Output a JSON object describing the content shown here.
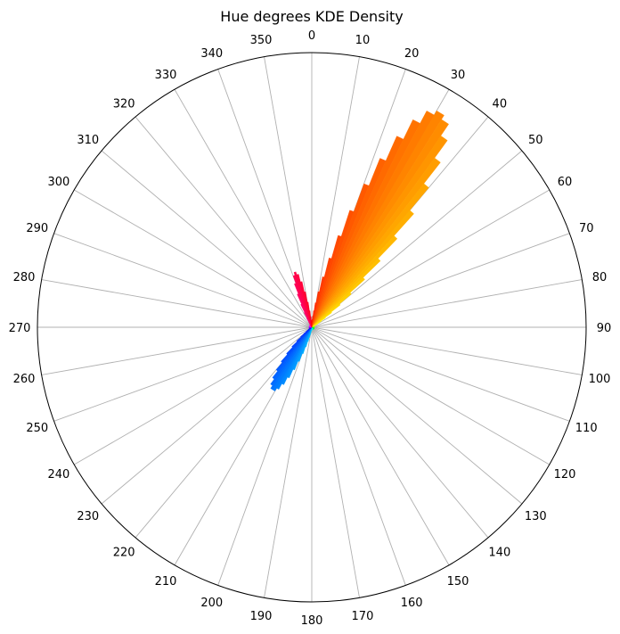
{
  "chart_data": {
    "type": "polar-bar",
    "title": "Hue degrees KDE Density",
    "theta_zero_location": "top",
    "theta_direction": "clockwise",
    "theta_ticks": [
      "0",
      "10",
      "20",
      "30",
      "40",
      "50",
      "60",
      "70",
      "80",
      "90",
      "100",
      "110",
      "120",
      "130",
      "140",
      "150",
      "160",
      "170",
      "180",
      "190",
      "200",
      "210",
      "220",
      "230",
      "240",
      "250",
      "260",
      "270",
      "280",
      "290",
      "300",
      "310",
      "320",
      "330",
      "340",
      "350"
    ],
    "r_ticks_shown": false,
    "r_max": 1.0,
    "grid": "radial spokes every 10 degrees",
    "bar_color_mapping": "hue of bin angle (hsv colormap)",
    "bin_width_degrees": 2,
    "density_peaks_normalized": [
      {
        "center_deg": 31,
        "peak": 0.9,
        "sigma_deg": 10
      },
      {
        "center_deg": 212,
        "peak": 0.26,
        "sigma_deg": 9
      },
      {
        "center_deg": 343,
        "peak": 0.2,
        "sigma_deg": 6
      }
    ],
    "base_level_normalized": 0.01
  }
}
